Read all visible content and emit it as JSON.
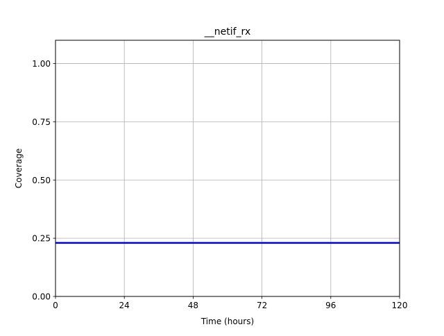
{
  "chart_data": {
    "type": "line",
    "title": "__netif_rx",
    "xlabel": "Time (hours)",
    "ylabel": "Coverage",
    "xlim": [
      0,
      120
    ],
    "ylim": [
      0,
      1.1
    ],
    "xticks": [
      0,
      24,
      48,
      72,
      96,
      120
    ],
    "xtick_labels": [
      "0",
      "24",
      "48",
      "72",
      "96",
      "120"
    ],
    "yticks": [
      0,
      0.25,
      0.5,
      0.75,
      1.0
    ],
    "ytick_labels": [
      "0.00",
      "0.25",
      "0.50",
      "0.75",
      "1.00"
    ],
    "grid": true,
    "series": [
      {
        "color": "#0000cc",
        "x": [
          0,
          120
        ],
        "y": [
          0.23,
          0.23
        ]
      }
    ]
  }
}
